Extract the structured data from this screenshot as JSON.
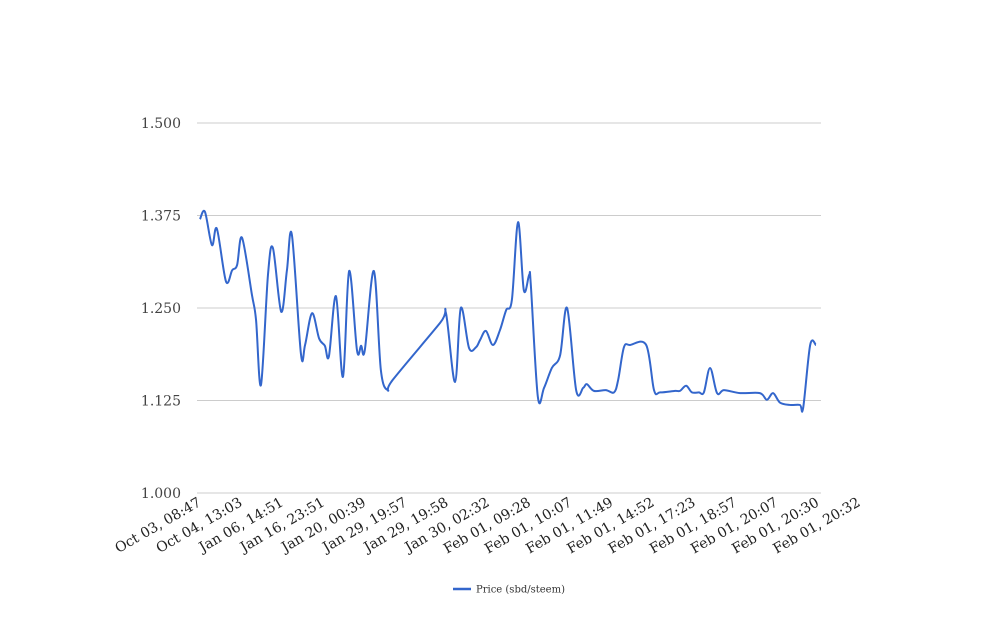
{
  "chart_data": {
    "type": "line",
    "title": "",
    "xlabel": "",
    "ylabel": "",
    "ylim": [
      1.0,
      1.5
    ],
    "yticks": [
      "1.000",
      "1.125",
      "1.250",
      "1.375",
      "1.500"
    ],
    "ytick_values": [
      1.0,
      1.125,
      1.25,
      1.375,
      1.5
    ],
    "grid": true,
    "legend": "bottom",
    "categories": [
      "Oct 03, 08:47",
      "Oct 04, 13:03",
      "Jan 06, 14:51",
      "Jan 16, 23:51",
      "Jan 20, 00:39",
      "Jan 29, 19:57",
      "Jan 29, 19:58",
      "Jan 30, 02:32",
      "Feb 01, 09:28",
      "Feb 01, 10:07",
      "Feb 01, 11:49",
      "Feb 01, 14:52",
      "Feb 01, 17:23",
      "Feb 01, 18:57",
      "Feb 01, 20:07",
      "Feb 01, 20:30",
      "Feb 01, 20:32"
    ],
    "series": [
      {
        "name": "Price (sbd/steem)",
        "color": "#3366cc",
        "points": [
          [
            0,
            1.37
          ],
          [
            0.12,
            1.38
          ],
          [
            0.29,
            1.335
          ],
          [
            0.41,
            1.357
          ],
          [
            0.63,
            1.286
          ],
          [
            0.78,
            1.301
          ],
          [
            0.9,
            1.308
          ],
          [
            1.02,
            1.345
          ],
          [
            1.26,
            1.268
          ],
          [
            1.36,
            1.234
          ],
          [
            1.48,
            1.146
          ],
          [
            1.65,
            1.295
          ],
          [
            1.77,
            1.331
          ],
          [
            1.97,
            1.245
          ],
          [
            2.11,
            1.301
          ],
          [
            2.23,
            1.349
          ],
          [
            2.45,
            1.188
          ],
          [
            2.55,
            1.2
          ],
          [
            2.72,
            1.243
          ],
          [
            2.89,
            1.209
          ],
          [
            3.03,
            1.199
          ],
          [
            3.13,
            1.185
          ],
          [
            3.3,
            1.266
          ],
          [
            3.47,
            1.157
          ],
          [
            3.62,
            1.3
          ],
          [
            3.81,
            1.193
          ],
          [
            3.91,
            1.199
          ],
          [
            4.0,
            1.193
          ],
          [
            4.22,
            1.3
          ],
          [
            4.39,
            1.166
          ],
          [
            4.56,
            1.139
          ],
          [
            4.68,
            1.153
          ],
          [
            5.83,
            1.23
          ],
          [
            5.97,
            1.243
          ],
          [
            6.19,
            1.15
          ],
          [
            6.33,
            1.25
          ],
          [
            6.53,
            1.196
          ],
          [
            6.7,
            1.197
          ],
          [
            6.8,
            1.207
          ],
          [
            6.94,
            1.219
          ],
          [
            7.11,
            1.2
          ],
          [
            7.28,
            1.22
          ],
          [
            7.43,
            1.247
          ],
          [
            7.57,
            1.261
          ],
          [
            7.72,
            1.366
          ],
          [
            7.86,
            1.274
          ],
          [
            7.99,
            1.295
          ],
          [
            8.03,
            1.281
          ],
          [
            8.2,
            1.13
          ],
          [
            8.35,
            1.142
          ],
          [
            8.54,
            1.169
          ],
          [
            8.74,
            1.186
          ],
          [
            8.91,
            1.25
          ],
          [
            9.13,
            1.139
          ],
          [
            9.3,
            1.142
          ],
          [
            9.39,
            1.147
          ],
          [
            9.56,
            1.138
          ],
          [
            9.85,
            1.139
          ],
          [
            10.05,
            1.136
          ],
          [
            10.15,
            1.153
          ],
          [
            10.29,
            1.197
          ],
          [
            10.44,
            1.2
          ],
          [
            10.83,
            1.2
          ],
          [
            11.02,
            1.139
          ],
          [
            11.17,
            1.136
          ],
          [
            11.53,
            1.138
          ],
          [
            11.65,
            1.138
          ],
          [
            11.8,
            1.145
          ],
          [
            11.94,
            1.136
          ],
          [
            12.11,
            1.136
          ],
          [
            12.23,
            1.136
          ],
          [
            12.38,
            1.169
          ],
          [
            12.55,
            1.135
          ],
          [
            12.72,
            1.139
          ],
          [
            13.11,
            1.135
          ],
          [
            13.59,
            1.135
          ],
          [
            13.76,
            1.126
          ],
          [
            13.91,
            1.135
          ],
          [
            14.08,
            1.122
          ],
          [
            14.32,
            1.119
          ],
          [
            14.56,
            1.119
          ],
          [
            14.64,
            1.115
          ],
          [
            14.81,
            1.2
          ],
          [
            14.95,
            1.2
          ]
        ]
      }
    ]
  }
}
